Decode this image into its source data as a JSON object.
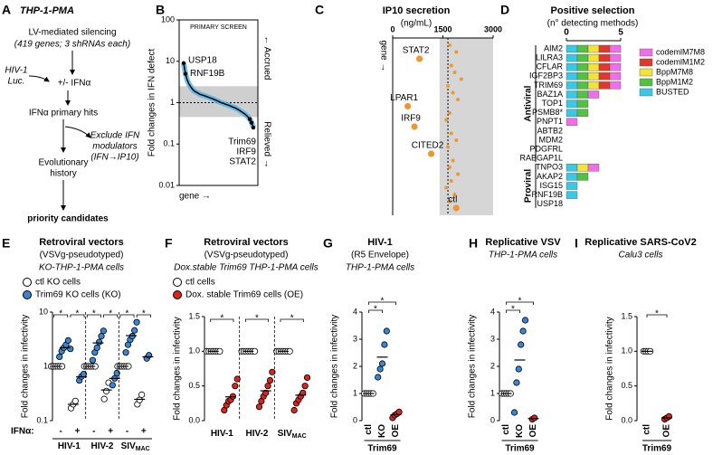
{
  "diagram": {
    "panel": "A",
    "header": "THP-1-PMA",
    "step1": "LV-mediated silencing",
    "step1_note": "(419 genes; 3 shRNAs each)",
    "virus": [
      "HIV-1",
      "Luc."
    ],
    "treatment": "+/- IFNα",
    "hits": "IFNα primary hits",
    "exclude": [
      "Exclude IFN",
      "modulators",
      "(IFN→IP10)"
    ],
    "history": [
      "Evolutionary",
      "history"
    ],
    "result": "priority candidates"
  },
  "chart_data": [
    {
      "panel": "B",
      "type": "line",
      "title": "PRIMARY SCREEN",
      "ylabel": "Fold changes in IFN defect",
      "xlabel": "gene →",
      "side_labels": [
        "← Accrued",
        "Relieved →"
      ],
      "values": [
        9,
        5,
        3.5,
        2.8,
        2.4,
        2.1,
        1.9,
        1.8,
        1.7,
        1.6,
        1.55,
        1.5,
        1.45,
        1.4,
        1.35,
        1.3,
        1.25,
        1.2,
        1.15,
        1.1,
        1.05,
        1.0,
        0.97,
        0.93,
        0.9,
        0.87,
        0.84,
        0.8,
        0.77,
        0.74,
        0.7,
        0.66,
        0.62,
        0.58,
        0.54,
        0.5,
        0.45,
        0.4,
        0.33,
        0.25
      ],
      "color": "#000000",
      "error_color": "#4fb3e6",
      "log_y": true,
      "ylim": [
        0.01,
        100
      ],
      "yticks": [
        0.01,
        0.1,
        1,
        10,
        100
      ],
      "band": [
        0.45,
        2.5
      ],
      "reference": 1,
      "annotations": [
        {
          "text": "USP18",
          "index": 0
        },
        {
          "text": "RNF19B",
          "index": 1
        },
        {
          "text": "Trim69",
          "index": 37
        },
        {
          "text": "IRF9",
          "index": 38
        },
        {
          "text": "STAT2",
          "index": 39
        }
      ]
    },
    {
      "panel": "C",
      "type": "scatter",
      "title": "IP10 secretion",
      "subtitle": "(ng/mL)",
      "ylabel": "gene →",
      "values": [
        1700,
        1900,
        800,
        1750,
        1850,
        2050,
        1650,
        1800,
        1950,
        450,
        1700,
        1600,
        650,
        1750,
        1900,
        1650,
        1150,
        1800,
        1700,
        1950,
        1750,
        1600,
        1850,
        1700,
        1900
      ],
      "labels": [
        null,
        null,
        "STAT2",
        null,
        null,
        null,
        null,
        null,
        null,
        "LPAR1",
        null,
        null,
        "IRF9",
        null,
        null,
        null,
        "CITED2",
        null,
        null,
        null,
        null,
        null,
        null,
        null,
        "ctl"
      ],
      "color": "#f0962e",
      "xlim": [
        0,
        3000
      ],
      "xticks": [
        0,
        1500,
        3000
      ],
      "band": [
        1400,
        3000
      ],
      "reference": 1650
    },
    {
      "panel": "D",
      "type": "bar",
      "orientation": "horizontal",
      "stacked": true,
      "title": "Positive selection",
      "subtitle": "(n° detecting methods)",
      "categories": [
        "AIM2",
        "LILRA3",
        "CFLAR",
        "IGF2BP3",
        "TRIM69",
        "BAZ1A",
        "TOP1",
        "PSMB8*",
        "PNPT1",
        "ABTB2",
        "MDM2",
        "PDGFRL",
        "RABGAP1L",
        "TNPO3",
        "AKAP2",
        "ISG15",
        "RNF19B",
        "USP18"
      ],
      "groups": [
        {
          "label": "Antiviral",
          "from": 0,
          "to": 12
        },
        {
          "label": "Proviral",
          "from": 13,
          "to": 17
        }
      ],
      "series": [
        {
          "name": "codemlM7M8",
          "color": "#f06ee8",
          "values": [
            1,
            1,
            1,
            1,
            1,
            1,
            0,
            0,
            1,
            0,
            0,
            0,
            0,
            1,
            0,
            0,
            0,
            0
          ]
        },
        {
          "name": "codemlM1M2",
          "color": "#e0392c",
          "values": [
            1,
            1,
            1,
            1,
            1,
            0,
            0,
            0,
            0,
            0,
            0,
            0,
            0,
            0,
            0,
            0,
            0,
            0
          ]
        },
        {
          "name": "BppM7M8",
          "color": "#f3e23a",
          "values": [
            1,
            1,
            1,
            1,
            1,
            0,
            0,
            0,
            0,
            0,
            0,
            0,
            0,
            1,
            0,
            0,
            0,
            0
          ]
        },
        {
          "name": "BppM1M2",
          "color": "#53c242",
          "values": [
            1,
            1,
            1,
            1,
            1,
            1,
            1,
            1,
            0,
            0,
            0,
            0,
            0,
            0,
            1,
            0,
            0,
            0
          ]
        },
        {
          "name": "BUSTED",
          "color": "#39c8e8",
          "values": [
            1,
            1,
            1,
            1,
            1,
            1,
            1,
            1,
            0,
            0,
            0,
            0,
            0,
            1,
            1,
            1,
            1,
            0
          ]
        }
      ],
      "xlim": [
        0,
        5
      ],
      "xticks": [
        0,
        5
      ]
    },
    {
      "panel": "E",
      "type": "dot",
      "title": [
        "Retroviral vectors",
        "(VSVg-pseudotyped)",
        "KO-THP-1-PMA cells"
      ],
      "ylabel": "Fold changes in infectivity",
      "factor_label": "IFNα:",
      "log_y": true,
      "ylim": [
        0.1,
        10
      ],
      "yticks": [
        0.1,
        1,
        10
      ],
      "categories": [
        "-",
        "+",
        "-",
        "+",
        "-",
        "+"
      ],
      "groups": [
        {
          "label": "HIV-1"
        },
        {
          "label": "HIV-2"
        },
        {
          "label": "SIV",
          "sub": "MAC"
        }
      ],
      "series": [
        {
          "name": "ctl KO cells",
          "color": "#ffffff",
          "values": [
            [
              1,
              1,
              1,
              1,
              1,
              1
            ],
            [
              0.17,
              0.2,
              0.23
            ],
            [
              1,
              1,
              1,
              1,
              1,
              1
            ],
            [
              0.25,
              0.35,
              0.5
            ],
            [
              1,
              1,
              1,
              1,
              1,
              1
            ],
            [
              0.2,
              0.24,
              0.3
            ]
          ]
        },
        {
          "name": "Trim69 KO cells (KO)",
          "color": "#3a86d4",
          "values": [
            [
              1.5,
              1.9,
              2.2,
              2.5,
              3,
              2.1
            ],
            [
              0.55,
              0.65,
              0.72
            ],
            [
              1.3,
              1.8,
              2.2,
              2.8,
              3.6,
              4.5
            ],
            [
              0.45,
              0.6,
              0.75
            ],
            [
              1.8,
              2.5,
              3.1,
              3.6,
              4.6,
              6.5
            ],
            [
              1.4,
              1.6
            ]
          ]
        }
      ],
      "significance": {
        "label": "*"
      }
    },
    {
      "panel": "F",
      "type": "dot",
      "title": [
        "Retroviral vectors",
        "(VSVg-pseudotyped)",
        "Dox.stable Trim69 THP-1-PMA cells"
      ],
      "ylabel": "Fold changes in infectivity",
      "ylim": [
        0,
        1.5
      ],
      "yticks": [
        {
          "value": 0,
          "label": "0.0"
        },
        {
          "value": 0.5,
          "label": "0.5"
        },
        {
          "value": 1,
          "label": "1.0"
        },
        {
          "value": 1.5,
          "label": "1.5"
        }
      ],
      "groups": [
        {
          "label": "HIV-1"
        },
        {
          "label": "HIV-2"
        },
        {
          "label": "SIV",
          "sub": "MAC"
        }
      ],
      "series": [
        {
          "name": "ctl cells",
          "color": "#ffffff",
          "values": [
            [
              1,
              1,
              1,
              1,
              1,
              1,
              1
            ],
            [
              1,
              1,
              1,
              1,
              1,
              1,
              1
            ],
            [
              1,
              1,
              1,
              1,
              1,
              1,
              1
            ]
          ]
        },
        {
          "name": "Dox. stable Trim69 cells (OE)",
          "color": "#d7261e",
          "values": [
            [
              0.15,
              0.22,
              0.28,
              0.3,
              0.35,
              0.5,
              0.6
            ],
            [
              0.2,
              0.28,
              0.35,
              0.4,
              0.5,
              0.58,
              0.7
            ],
            [
              0.15,
              0.25,
              0.3,
              0.35,
              0.4,
              0.5,
              0.62
            ]
          ]
        }
      ],
      "significance": {
        "label": "*"
      }
    },
    {
      "panel": "G",
      "type": "dot",
      "title": [
        "HIV-1",
        "(R5 Envelope)",
        "THP-1-PMA cells"
      ],
      "ylabel": "Fold changes in infectivity",
      "xlabel": "Trim69",
      "ylim": [
        0,
        4
      ],
      "yticks": [
        0,
        1,
        2,
        3,
        4
      ],
      "categories": [
        "ctl",
        "KO",
        "OE"
      ],
      "series": [
        {
          "color": "#ffffff",
          "values": [
            [
              1,
              1,
              1,
              1,
              1
            ],
            null,
            null
          ]
        },
        {
          "color": "#3a86d4",
          "values": [
            null,
            [
              1.6,
              1.9,
              2.1,
              2.8,
              3.3
            ],
            null
          ]
        },
        {
          "color": "#d7261e",
          "values": [
            null,
            null,
            [
              0.1,
              0.2,
              0.25,
              0.32
            ]
          ]
        }
      ],
      "significance": {
        "label": "*",
        "pairs": [
          [
            0,
            1
          ],
          [
            0,
            2
          ]
        ]
      }
    },
    {
      "panel": "H",
      "type": "dot",
      "title": [
        "Replicative VSV",
        "THP-1-PMA cells"
      ],
      "ylabel": "Fold changes in infectivity",
      "xlabel": "Trim69",
      "ylim": [
        0,
        4
      ],
      "yticks": [
        0,
        1,
        2,
        3,
        4
      ],
      "categories": [
        "ctl",
        "KO",
        "OE"
      ],
      "series": [
        {
          "color": "#ffffff",
          "values": [
            [
              1,
              1,
              1,
              1,
              1
            ],
            null,
            null
          ]
        },
        {
          "color": "#3a86d4",
          "values": [
            null,
            [
              0.3,
              1.4,
              1.9,
              2.8,
              3.3,
              3.7
            ],
            null
          ]
        },
        {
          "color": "#d7261e",
          "values": [
            null,
            null,
            [
              0.05,
              0.1
            ]
          ]
        }
      ],
      "significance": {
        "label": "*",
        "pairs": [
          [
            0,
            1
          ],
          [
            0,
            2
          ]
        ]
      }
    },
    {
      "panel": "I",
      "type": "dot",
      "title": [
        "Replicative SARS-CoV2",
        "Calu3 cells"
      ],
      "ylabel": "Fold changes in infectivity",
      "xlabel": "Trim69",
      "ylim": [
        0,
        1.5
      ],
      "yticks": [
        {
          "value": 0,
          "label": "0.0"
        },
        {
          "value": 0.5,
          "label": "0.5"
        },
        {
          "value": 1,
          "label": "1.0"
        },
        {
          "value": 1.5,
          "label": "1.5"
        }
      ],
      "categories": [
        "ctl",
        "OE"
      ],
      "series": [
        {
          "color": "#ffffff",
          "values": [
            [
              1,
              1,
              1,
              1
            ],
            null
          ]
        },
        {
          "color": "#d7261e",
          "values": [
            null,
            [
              0.02,
              0.04,
              0.06
            ]
          ]
        }
      ],
      "significance": {
        "label": "*",
        "pairs": [
          [
            0,
            1
          ]
        ]
      }
    }
  ]
}
